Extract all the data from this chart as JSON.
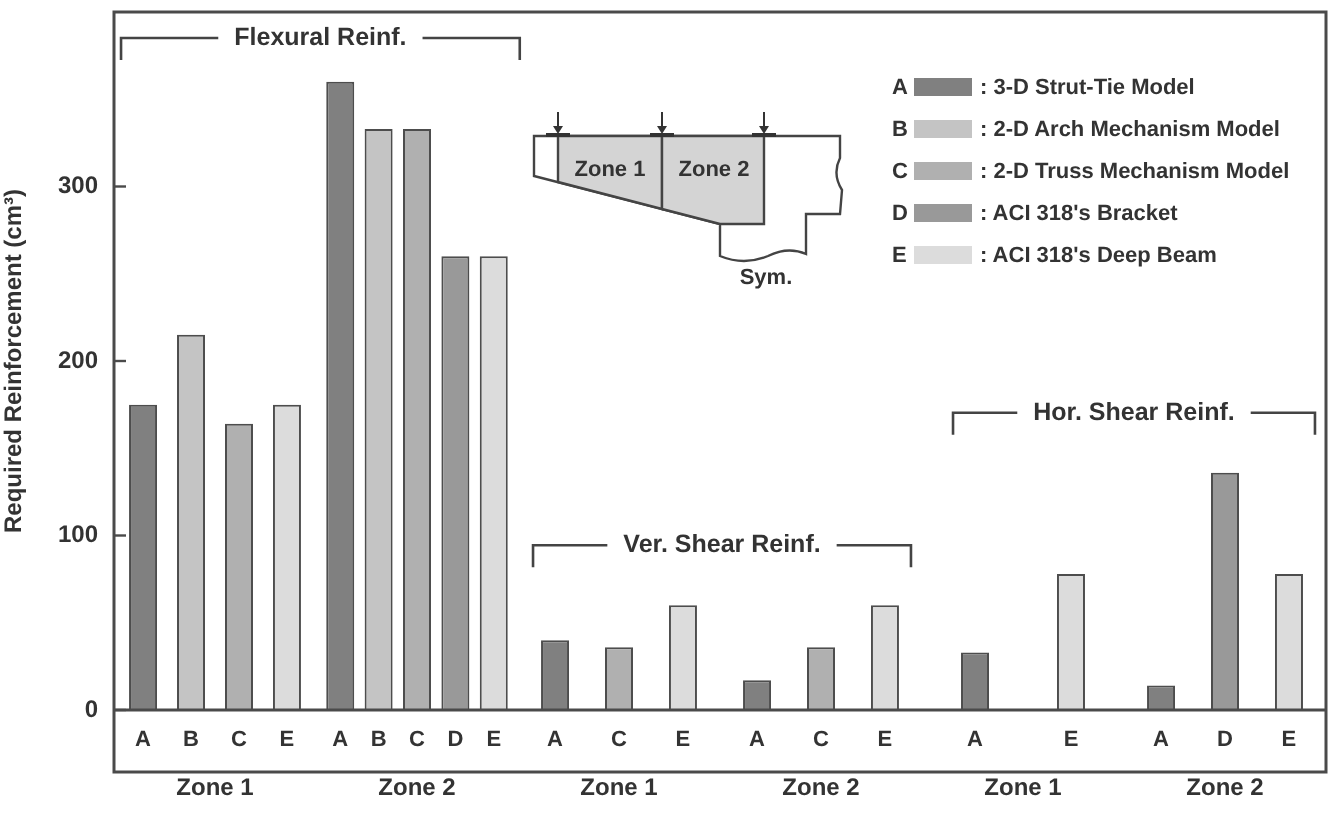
{
  "chart_data": {
    "type": "bar",
    "ylabel": "Required Reinforcement (cm³)",
    "categories": [
      "Zone 1",
      "Zone 2",
      "Zone 1",
      "Zone 2",
      "Zone 1",
      "Zone 2"
    ],
    "series": [
      {
        "name": "A",
        "color": "#808080",
        "values": [
          175,
          360,
          40,
          17,
          33,
          14
        ]
      },
      {
        "name": "B",
        "color": "#c4c4c4",
        "values": [
          215,
          333,
          null,
          null,
          null,
          null
        ]
      },
      {
        "name": "C",
        "color": "#b0b0b0",
        "values": [
          164,
          333,
          36,
          36,
          null,
          null
        ]
      },
      {
        "name": "D",
        "color": "#999999",
        "values": [
          null,
          260,
          null,
          null,
          null,
          136
        ]
      },
      {
        "name": "E",
        "color": "#dcdcdc",
        "values": [
          175,
          260,
          60,
          60,
          78,
          78
        ]
      }
    ],
    "ylim": [
      0,
      400
    ],
    "yticks": [
      0,
      100,
      200,
      300
    ],
    "legend": "top right",
    "annotations": [
      "Flexural Reinf.",
      "Ver. Shear Reinf.",
      "Hor. Shear Reinf.",
      ": 3-D Strut-Tie Model",
      ": 2-D Arch Mechanism Model",
      ": 2-D Truss Mechanism Model",
      ": ACI 318's Bracket",
      ": ACI 318's Deep Beam",
      "Zone 1",
      "Zone 2",
      "Sym."
    ]
  }
}
